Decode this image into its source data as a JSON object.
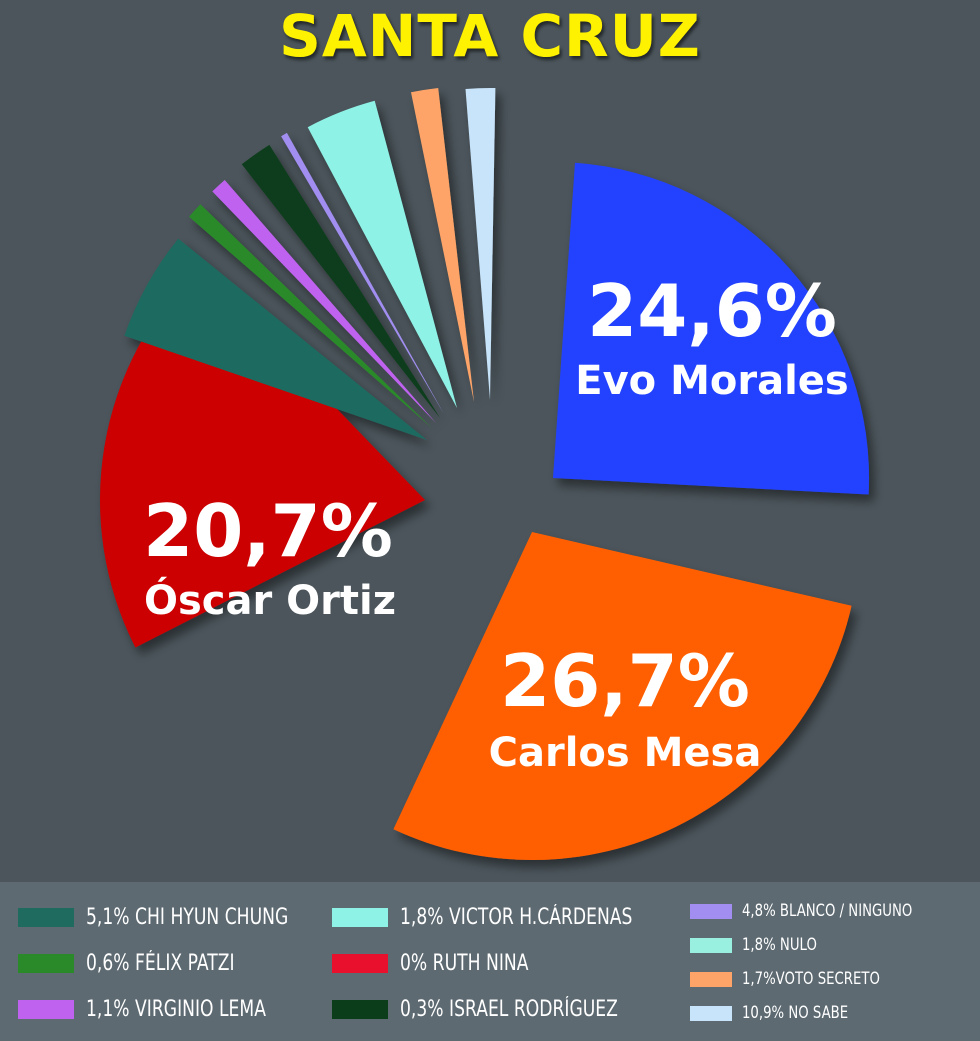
{
  "title": "SANTA CRUZ",
  "chart_data": {
    "type": "pie",
    "exploded": true,
    "slices": [
      {
        "key": "evo",
        "value": 24.6,
        "color": "#2442ff",
        "label_pct": "24,6%",
        "label_name": "Evo Morales"
      },
      {
        "key": "mesa",
        "value": 26.7,
        "color": "#ff5f00",
        "label_pct": "26,7%",
        "label_name": "Carlos Mesa"
      },
      {
        "key": "ortiz",
        "value": 20.7,
        "color": "#cc0000",
        "label_pct": "20,7%",
        "label_name": "Óscar Ortiz"
      },
      {
        "key": "chung",
        "value": 5.1,
        "color": "#1f6b60"
      },
      {
        "key": "patzi",
        "value": 0.6,
        "color": "#2a8a2a"
      },
      {
        "key": "lema",
        "value": 1.1,
        "color": "#c062f0"
      },
      {
        "key": "rodriguez",
        "value": 0.3,
        "color": "#0b3d1a"
      },
      {
        "key": "blanco",
        "value": 4.8,
        "color": "#a28ef0"
      },
      {
        "key": "cardenas",
        "value": 1.8,
        "color": "#8ff2e6"
      },
      {
        "key": "nulo",
        "value": 1.8,
        "color": "#9af0e0"
      },
      {
        "key": "secreto",
        "value": 1.7,
        "color": "#ffa468"
      },
      {
        "key": "nosabe",
        "value": 10.9,
        "color": "#c8e4fb"
      }
    ],
    "legend": [
      {
        "text": "5,1% CHI HYUN CHUNG",
        "color": "#1f6b60"
      },
      {
        "text": "0,6% FÉLIX PATZI",
        "color": "#2a8a2a"
      },
      {
        "text": "1,1% VIRGINIO LEMA",
        "color": "#c062f0"
      },
      {
        "text": "1,8% VICTOR H.CÁRDENAS",
        "color": "#8ff2e6"
      },
      {
        "text": "0% RUTH NINA",
        "color": "#e8102c"
      },
      {
        "text": "0,3% ISRAEL RODRÍGUEZ",
        "color": "#0b3d1a"
      },
      {
        "text": "4,8% BLANCO / NINGUNO",
        "color": "#a28ef0"
      },
      {
        "text": "1,8% NULO",
        "color": "#9af0e0"
      },
      {
        "text": "1,7%VOTO SECRETO",
        "color": "#ffa468"
      },
      {
        "text": "10,9% NO SABE",
        "color": "#c8e4fb"
      }
    ]
  }
}
